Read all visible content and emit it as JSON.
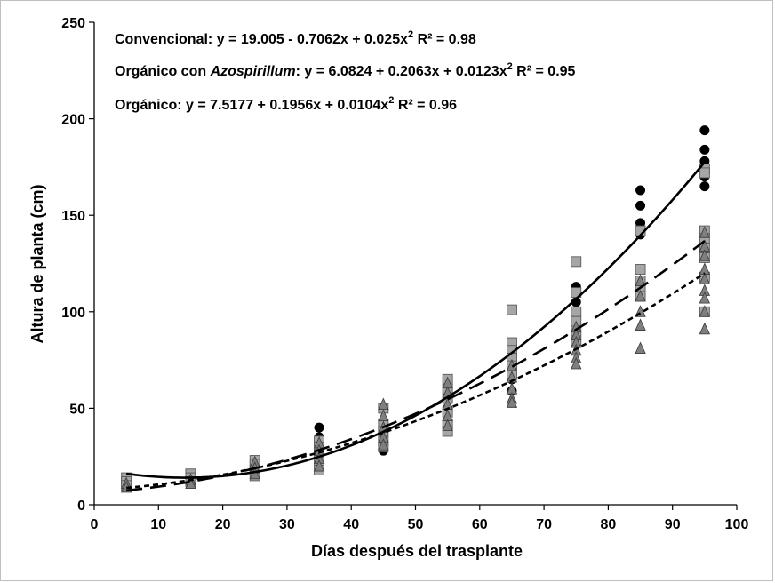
{
  "chart_data": {
    "type": "scatter",
    "title": "",
    "xlabel": "Días después del trasplante",
    "ylabel": "Altura de planta (cm)",
    "xlim": [
      0,
      100
    ],
    "ylim": [
      0,
      250
    ],
    "xticks": [
      "0",
      "10",
      "20",
      "30",
      "40",
      "50",
      "60",
      "70",
      "80",
      "90",
      "100"
    ],
    "yticks": [
      "0",
      "50",
      "100",
      "150",
      "200",
      "250"
    ],
    "grid": false,
    "equations": [
      {
        "name": "Convencional",
        "name_italic": "",
        "formula": "y = 19.005 - 0.7062x + 0.025x",
        "r2": "R² = 0.98"
      },
      {
        "name": "Orgánico con ",
        "name_italic": "Azospirillum",
        "formula": "y = 6.0824 + 0.2063x + 0.0123x",
        "r2": "R² = 0.95"
      },
      {
        "name": "Orgánico",
        "name_italic": "",
        "formula": "y = 7.5177 + 0.1956x + 0.0104x",
        "r2": "R² = 0.96"
      }
    ],
    "fits": [
      {
        "key": "convencional",
        "coef": [
          19.005,
          -0.7062,
          0.025
        ],
        "style": "solid",
        "color": "#000000"
      },
      {
        "key": "azospirillum",
        "coef": [
          6.0824,
          0.2063,
          0.0123
        ],
        "style": "long-dash",
        "color": "#000000"
      },
      {
        "key": "organico",
        "coef": [
          7.5177,
          0.1956,
          0.0104
        ],
        "style": "short-dash",
        "color": "#000000"
      }
    ],
    "series": [
      {
        "key": "convencional",
        "marker": "circle",
        "color": "#000000",
        "points": [
          [
            5,
            12
          ],
          [
            5,
            11
          ],
          [
            5,
            14
          ],
          [
            15,
            12
          ],
          [
            15,
            13
          ],
          [
            25,
            20
          ],
          [
            25,
            18
          ],
          [
            25,
            16
          ],
          [
            35,
            40
          ],
          [
            35,
            35
          ],
          [
            35,
            30
          ],
          [
            35,
            27
          ],
          [
            35,
            22
          ],
          [
            45,
            28
          ],
          [
            45,
            30
          ],
          [
            45,
            36
          ],
          [
            45,
            41
          ],
          [
            45,
            50
          ],
          [
            55,
            50
          ],
          [
            55,
            55
          ],
          [
            55,
            58
          ],
          [
            55,
            62
          ],
          [
            65,
            59
          ],
          [
            65,
            65
          ],
          [
            65,
            70
          ],
          [
            65,
            75
          ],
          [
            75,
            113
          ],
          [
            75,
            110
          ],
          [
            75,
            105
          ],
          [
            75,
            100
          ],
          [
            75,
            98
          ],
          [
            85,
            163
          ],
          [
            85,
            155
          ],
          [
            85,
            146
          ],
          [
            85,
            140
          ],
          [
            85,
            143
          ],
          [
            95,
            194
          ],
          [
            95,
            184
          ],
          [
            95,
            178
          ],
          [
            95,
            175
          ],
          [
            95,
            170
          ],
          [
            95,
            165
          ]
        ]
      },
      {
        "key": "azospirillum",
        "marker": "square",
        "color": "#a6a6a6",
        "points": [
          [
            5,
            14
          ],
          [
            5,
            12
          ],
          [
            5,
            10
          ],
          [
            15,
            16
          ],
          [
            15,
            14
          ],
          [
            15,
            12
          ],
          [
            25,
            23
          ],
          [
            25,
            21
          ],
          [
            25,
            18
          ],
          [
            25,
            15
          ],
          [
            35,
            33
          ],
          [
            35,
            30
          ],
          [
            35,
            26
          ],
          [
            35,
            22
          ],
          [
            35,
            18
          ],
          [
            45,
            50
          ],
          [
            45,
            42
          ],
          [
            45,
            38
          ],
          [
            45,
            33
          ],
          [
            45,
            30
          ],
          [
            55,
            65
          ],
          [
            55,
            60
          ],
          [
            55,
            55
          ],
          [
            55,
            48
          ],
          [
            55,
            42
          ],
          [
            55,
            38
          ],
          [
            65,
            101
          ],
          [
            65,
            84
          ],
          [
            65,
            80
          ],
          [
            65,
            76
          ],
          [
            65,
            72
          ],
          [
            65,
            68
          ],
          [
            75,
            126
          ],
          [
            75,
            110
          ],
          [
            75,
            100
          ],
          [
            75,
            95
          ],
          [
            75,
            90
          ],
          [
            75,
            85
          ],
          [
            85,
            142
          ],
          [
            85,
            122
          ],
          [
            85,
            116
          ],
          [
            85,
            112
          ],
          [
            85,
            108
          ],
          [
            95,
            174
          ],
          [
            95,
            172
          ],
          [
            95,
            142
          ],
          [
            95,
            138
          ],
          [
            95,
            133
          ],
          [
            95,
            128
          ],
          [
            95,
            118
          ],
          [
            95,
            100
          ]
        ]
      },
      {
        "key": "organico",
        "marker": "triangle",
        "color": "#7f7f7f",
        "points": [
          [
            5,
            11
          ],
          [
            5,
            9
          ],
          [
            15,
            13
          ],
          [
            15,
            11
          ],
          [
            25,
            22
          ],
          [
            25,
            19
          ],
          [
            25,
            16
          ],
          [
            35,
            32
          ],
          [
            35,
            28
          ],
          [
            35,
            24
          ],
          [
            35,
            20
          ],
          [
            45,
            52
          ],
          [
            45,
            46
          ],
          [
            45,
            40
          ],
          [
            45,
            35
          ],
          [
            45,
            31
          ],
          [
            55,
            63
          ],
          [
            55,
            58
          ],
          [
            55,
            52
          ],
          [
            55,
            46
          ],
          [
            55,
            41
          ],
          [
            65,
            72
          ],
          [
            65,
            66
          ],
          [
            65,
            60
          ],
          [
            65,
            55
          ],
          [
            65,
            53
          ],
          [
            75,
            92
          ],
          [
            75,
            88
          ],
          [
            75,
            84
          ],
          [
            75,
            80
          ],
          [
            75,
            76
          ],
          [
            75,
            73
          ],
          [
            85,
            116
          ],
          [
            85,
            108
          ],
          [
            85,
            100
          ],
          [
            85,
            93
          ],
          [
            85,
            81
          ],
          [
            95,
            141
          ],
          [
            95,
            134
          ],
          [
            95,
            129
          ],
          [
            95,
            122
          ],
          [
            95,
            117
          ],
          [
            95,
            111
          ],
          [
            95,
            107
          ],
          [
            95,
            100
          ],
          [
            95,
            91
          ]
        ]
      }
    ]
  }
}
